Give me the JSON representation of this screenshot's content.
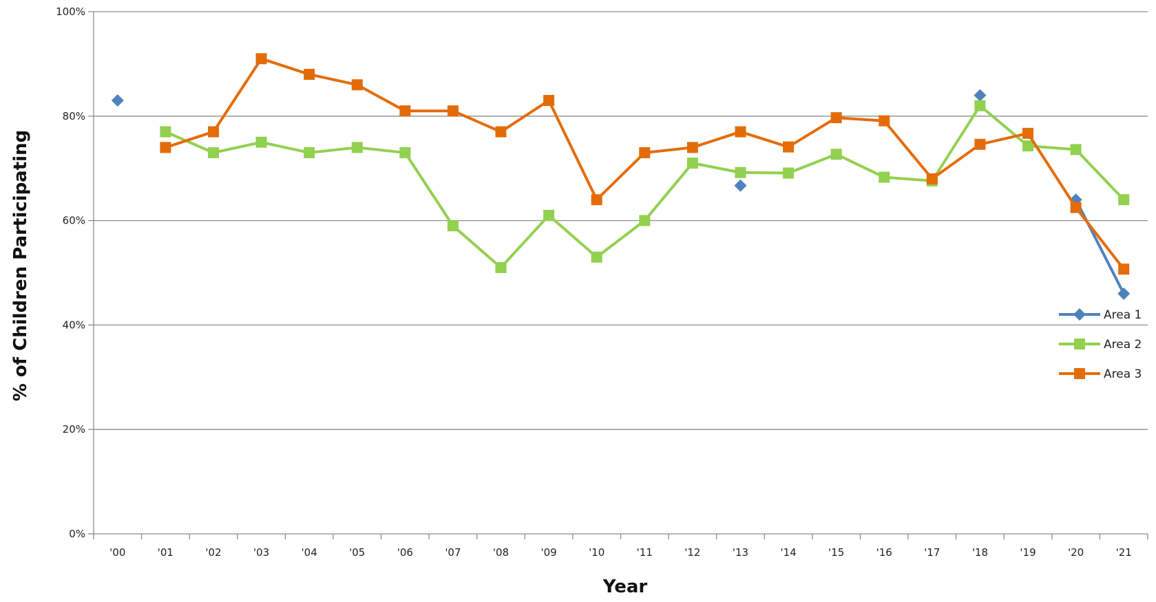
{
  "chart_data": {
    "type": "line",
    "title": "",
    "xlabel": "Year",
    "ylabel": "% of Children Participating",
    "categories": [
      "'00",
      "'01",
      "'02",
      "'03",
      "'04",
      "'05",
      "'06",
      "'07",
      "'08",
      "'09",
      "'10",
      "'11",
      "'12",
      "'13",
      "'14",
      "'15",
      "'16",
      "'17",
      "'18",
      "'19",
      "'20",
      "'21"
    ],
    "ylim": [
      0,
      100
    ],
    "yticks": [
      0,
      20,
      40,
      60,
      80,
      100
    ],
    "ytick_labels": [
      "0%",
      "20%",
      "40%",
      "60%",
      "80%",
      "100%"
    ],
    "grid": true,
    "legend_position": "right",
    "series": [
      {
        "name": "Area 1",
        "color": "#4f81bd",
        "marker": "diamond",
        "values": [
          83,
          null,
          null,
          null,
          null,
          null,
          null,
          null,
          null,
          null,
          null,
          null,
          null,
          66.7,
          null,
          null,
          null,
          null,
          84,
          null,
          64,
          46
        ]
      },
      {
        "name": "Area 2",
        "color": "#92d050",
        "marker": "square",
        "values": [
          null,
          77,
          73,
          75,
          73,
          74,
          73,
          59,
          51,
          61,
          53,
          60,
          71,
          69.2,
          69.1,
          72.7,
          68.3,
          67.6,
          82,
          74.3,
          73.6,
          64
        ]
      },
      {
        "name": "Area 3",
        "color": "#e36c09",
        "marker": "square",
        "values": [
          null,
          74,
          77,
          91,
          88,
          86,
          81,
          81,
          77,
          83,
          64,
          73,
          74,
          77,
          74.1,
          79.7,
          79.1,
          68,
          74.6,
          76.7,
          62.5,
          50.7
        ]
      }
    ]
  }
}
